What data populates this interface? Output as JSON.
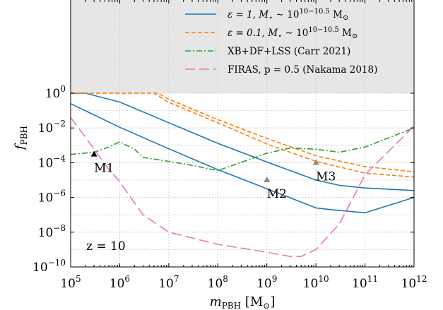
{
  "chart_data": {
    "type": "line",
    "xlabel": "m",
    "xlabel_sub": "PBH",
    "xlabel_unit": "[M",
    "xlabel_unit_sub": "⊙",
    "xlabel_unit_close": "]",
    "ylabel": "f",
    "ylabel_sub": "PBH",
    "x_scale": "log",
    "y_scale": "log",
    "xlim": [
      100000,
      1000000000000
    ],
    "ylim": [
      1e-10,
      1
    ],
    "x_tick_exponents": [
      5,
      6,
      7,
      8,
      9,
      10,
      11,
      12
    ],
    "y_tick_exponents": [
      -10,
      -8,
      -6,
      -4,
      -2,
      0
    ],
    "tick_base": "10",
    "grid": true,
    "excluded_region": {
      "above_y": 1,
      "color": "#e6e6e6"
    },
    "annotation_z": "z = 10",
    "legend_position": "top-right",
    "legend": [
      {
        "label": "ε = 1, M⋆ ∼ 10^{10−10.5} M⊙",
        "text_main": "ε = 1, M",
        "text_star": "⋆",
        "text_mid": " ∼ 10",
        "text_sup": "10−10.5",
        "text_end": " M",
        "text_sun": "⊙",
        "color": "#1f77b4",
        "style": "solid"
      },
      {
        "label": "ε = 0.1, M⋆ ∼ 10^{10−10.5} M⊙",
        "text_main": "ε = 0.1, M",
        "text_star": "⋆",
        "text_mid": " ∼ 10",
        "text_sup": "10−10.5",
        "text_end": " M",
        "text_sun": "⊙",
        "color": "#ff7f0e",
        "style": "dashed"
      },
      {
        "label": "XB+DF+LSS (Carr 2021)",
        "text_main": "XB+DF+LSS (Carr 2021)",
        "color": "#2ca02c",
        "style": "dashdot"
      },
      {
        "label": "FIRAS, p = 0.5 (Nakama 2018)",
        "text_main": "FIRAS, p = 0.5 (Nakama 2018)",
        "color": "#e377c2",
        "style": "longdash"
      }
    ],
    "series": [
      {
        "name": "ε = 1, M⋆ ∼ 10^{10−10.5} M⊙ (upper)",
        "color": "#1f77b4",
        "style": "solid",
        "x": [
          100000,
          200000,
          1000000,
          10000000,
          100000000,
          1000000000,
          10000000000,
          30000000000,
          100000000000,
          1000000000000
        ],
        "y": [
          1,
          1,
          0.31,
          0.02,
          0.0013,
          0.00011,
          1e-05,
          5e-06,
          3.5e-06,
          2.5e-06
        ]
      },
      {
        "name": "ε = 1, M⋆ ∼ 10^{10−10.5} M⊙ (lower)",
        "color": "#1f77b4",
        "style": "solid",
        "x": [
          100000,
          1000000,
          10000000,
          100000000,
          1000000000,
          10000000000,
          20000000000,
          100000000000,
          1000000000000
        ],
        "y": [
          0.25,
          0.011,
          0.00063,
          4e-05,
          3.2e-06,
          2.5e-07,
          2e-07,
          1.3e-07,
          1e-06
        ]
      },
      {
        "name": "ε = 0.1, M⋆ ∼ 10^{10−10.5} M⊙ (upper)",
        "color": "#ff7f0e",
        "style": "dashed",
        "x": [
          100000,
          6000000,
          10000000,
          100000000,
          1000000000,
          10000000000,
          100000000000,
          1000000000000
        ],
        "y": [
          1,
          1,
          0.45,
          0.03,
          0.0025,
          0.00025,
          6e-05,
          3e-05
        ]
      },
      {
        "name": "ε = 0.1, M⋆ ∼ 10^{10−10.5} M⊙ (lower)",
        "color": "#ff7f0e",
        "style": "dashed",
        "x": [
          100000,
          5000000,
          10000000,
          100000000,
          1000000000,
          10000000000,
          100000000000,
          1000000000000
        ],
        "y": [
          1,
          1,
          0.3,
          0.02,
          0.0012,
          0.00012,
          2.5e-05,
          1.5e-05
        ]
      },
      {
        "name": "XB+DF+LSS (Carr 2021)",
        "color": "#2ca02c",
        "style": "dashdot",
        "x": [
          100000,
          300000,
          600000,
          1000000,
          2000000,
          3000000,
          10000000,
          30000000,
          100000000,
          1000000000,
          3000000000,
          10000000000,
          30000000000,
          100000000000,
          1000000000000
        ],
        "y": [
          0.0003,
          0.0004,
          0.0008,
          0.0016,
          0.0006,
          0.0002,
          0.00012,
          7e-05,
          3.5e-05,
          0.00035,
          0.0007,
          0.0006,
          0.0004,
          0.0008,
          0.01
        ]
      },
      {
        "name": "FIRAS, p = 0.5 (Nakama 2018)",
        "color": "#e377c2",
        "style": "longdash",
        "x": [
          100000,
          200000,
          500000,
          1000000,
          3000000,
          10000000,
          100000000,
          1000000000,
          3000000000,
          5000000000,
          10000000000,
          30000000000,
          100000000000,
          1000000000000
        ],
        "y": [
          0.04,
          0.003,
          8e-05,
          8e-06,
          1e-07,
          1e-08,
          2e-09,
          7e-10,
          4e-10,
          4e-10,
          1e-09,
          3e-08,
          2e-05,
          0.013
        ]
      }
    ],
    "markers": [
      {
        "label": "M1",
        "x": 300000,
        "y": 0.0003,
        "color": "#000000"
      },
      {
        "label": "M2",
        "x": 1000000000,
        "y": 1e-05,
        "color": "#888888"
      },
      {
        "label": "M3",
        "x": 10000000000,
        "y": 0.0001,
        "color": "#888888"
      }
    ]
  }
}
